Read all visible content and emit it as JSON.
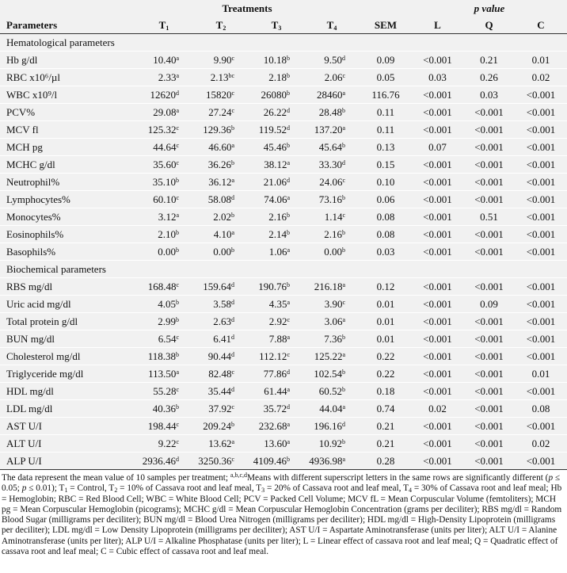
{
  "header": {
    "group_treatments": "Treatments",
    "group_p": "p value",
    "columns": [
      {
        "text": "Parameters"
      },
      {
        "text": "T",
        "sub": "1"
      },
      {
        "text": "T",
        "sub": "2"
      },
      {
        "text": "T",
        "sub": "3"
      },
      {
        "text": "T",
        "sub": "4"
      },
      {
        "text": "SEM"
      },
      {
        "text": "L"
      },
      {
        "text": "Q"
      },
      {
        "text": "C"
      }
    ]
  },
  "sections": [
    {
      "title": "Hematological parameters",
      "rows": [
        {
          "label": "Hb g/dl",
          "values": [
            [
              "10.40",
              "a"
            ],
            [
              "9.90",
              "c"
            ],
            [
              "10.18",
              "b"
            ],
            [
              "9.50",
              "d"
            ]
          ],
          "sem": "0.09",
          "p": [
            "<0.001",
            "0.21",
            "0.01"
          ]
        },
        {
          "label": "RBC x10⁶/µl",
          "values": [
            [
              "2.33",
              "a"
            ],
            [
              "2.13",
              "bc"
            ],
            [
              "2.18",
              "b"
            ],
            [
              "2.06",
              "c"
            ]
          ],
          "sem": "0.05",
          "p": [
            "0.03",
            "0.26",
            "0.02"
          ]
        },
        {
          "label": "WBC x10⁹/l",
          "values": [
            [
              "12620",
              "d"
            ],
            [
              "15820",
              "c"
            ],
            [
              "26080",
              "b"
            ],
            [
              "28460",
              "a"
            ]
          ],
          "sem": "116.76",
          "p": [
            "<0.001",
            "0.03",
            "<0.001"
          ]
        },
        {
          "label": "PCV%",
          "values": [
            [
              "29.08",
              "a"
            ],
            [
              "27.24",
              "c"
            ],
            [
              "26.22",
              "d"
            ],
            [
              "28.48",
              "b"
            ]
          ],
          "sem": "0.11",
          "p": [
            "<0.001",
            "<0.001",
            "<0.001"
          ]
        },
        {
          "label": "MCV fl",
          "values": [
            [
              "125.32",
              "c"
            ],
            [
              "129.36",
              "b"
            ],
            [
              "119.52",
              "d"
            ],
            [
              "137.20",
              "a"
            ]
          ],
          "sem": "0.11",
          "p": [
            "<0.001",
            "<0.001",
            "<0.001"
          ]
        },
        {
          "label": "MCH pg",
          "values": [
            [
              "44.64",
              "c"
            ],
            [
              "46.60",
              "a"
            ],
            [
              "45.46",
              "b"
            ],
            [
              "45.64",
              "b"
            ]
          ],
          "sem": "0.13",
          "p": [
            "0.07",
            "<0.001",
            "<0.001"
          ]
        },
        {
          "label": "MCHC g/dl",
          "values": [
            [
              "35.60",
              "c"
            ],
            [
              "36.26",
              "b"
            ],
            [
              "38.12",
              "a"
            ],
            [
              "33.30",
              "d"
            ]
          ],
          "sem": "0.15",
          "p": [
            "<0.001",
            "<0.001",
            "<0.001"
          ]
        },
        {
          "label": "Neutrophil%",
          "values": [
            [
              "35.10",
              "b"
            ],
            [
              "36.12",
              "a"
            ],
            [
              "21.06",
              "d"
            ],
            [
              "24.06",
              "c"
            ]
          ],
          "sem": "0.10",
          "p": [
            "<0.001",
            "<0.001",
            "<0.001"
          ]
        },
        {
          "label": "Lymphocytes%",
          "values": [
            [
              "60.10",
              "c"
            ],
            [
              "58.08",
              "d"
            ],
            [
              "74.06",
              "a"
            ],
            [
              "73.16",
              "b"
            ]
          ],
          "sem": "0.06",
          "p": [
            "<0.001",
            "<0.001",
            "<0.001"
          ]
        },
        {
          "label": "Monocytes%",
          "values": [
            [
              "3.12",
              "a"
            ],
            [
              "2.02",
              "b"
            ],
            [
              "2.16",
              "b"
            ],
            [
              "1.14",
              "c"
            ]
          ],
          "sem": "0.08",
          "p": [
            "<0.001",
            "0.51",
            "<0.001"
          ]
        },
        {
          "label": "Eosinophils%",
          "values": [
            [
              "2.10",
              "b"
            ],
            [
              "4.10",
              "a"
            ],
            [
              "2.14",
              "b"
            ],
            [
              "2.16",
              "b"
            ]
          ],
          "sem": "0.08",
          "p": [
            "<0.001",
            "<0.001",
            "<0.001"
          ]
        },
        {
          "label": "Basophils%",
          "values": [
            [
              "0.00",
              "b"
            ],
            [
              "0.00",
              "b"
            ],
            [
              "1.06",
              "a"
            ],
            [
              "0.00",
              "b"
            ]
          ],
          "sem": "0.03",
          "p": [
            "<0.001",
            "<0.001",
            "<0.001"
          ]
        }
      ]
    },
    {
      "title": "Biochemical parameters",
      "rows": [
        {
          "label": "RBS mg/dl",
          "values": [
            [
              "168.48",
              "c"
            ],
            [
              "159.64",
              "d"
            ],
            [
              "190.76",
              "b"
            ],
            [
              "216.18",
              "a"
            ]
          ],
          "sem": "0.12",
          "p": [
            "<0.001",
            "<0.001",
            "<0.001"
          ]
        },
        {
          "label": "Uric acid mg/dl",
          "values": [
            [
              "4.05",
              "b"
            ],
            [
              "3.58",
              "d"
            ],
            [
              "4.35",
              "a"
            ],
            [
              "3.90",
              "c"
            ]
          ],
          "sem": "0.01",
          "p": [
            "<0.001",
            "0.09",
            "<0.001"
          ]
        },
        {
          "label": "Total protein g/dl",
          "values": [
            [
              "2.99",
              "b"
            ],
            [
              "2.63",
              "d"
            ],
            [
              "2.92",
              "c"
            ],
            [
              "3.06",
              "a"
            ]
          ],
          "sem": "0.01",
          "p": [
            "<0.001",
            "<0.001",
            "<0.001"
          ]
        },
        {
          "label": "BUN mg/dl",
          "values": [
            [
              "6.54",
              "c"
            ],
            [
              "6.41",
              "d"
            ],
            [
              "7.88",
              "a"
            ],
            [
              "7.36",
              "b"
            ]
          ],
          "sem": "0.01",
          "p": [
            "<0.001",
            "<0.001",
            "<0.001"
          ]
        },
        {
          "label": "Cholesterol mg/dl",
          "values": [
            [
              "118.38",
              "b"
            ],
            [
              "90.44",
              "d"
            ],
            [
              "112.12",
              "c"
            ],
            [
              "125.22",
              "a"
            ]
          ],
          "sem": "0.22",
          "p": [
            "<0.001",
            "<0.001",
            "<0.001"
          ]
        },
        {
          "label": "Triglyceride mg/dl",
          "values": [
            [
              "113.50",
              "a"
            ],
            [
              "82.48",
              "c"
            ],
            [
              "77.86",
              "d"
            ],
            [
              "102.54",
              "b"
            ]
          ],
          "sem": "0.22",
          "p": [
            "<0.001",
            "<0.001",
            "0.01"
          ]
        },
        {
          "label": "HDL mg/dl",
          "values": [
            [
              "55.28",
              "c"
            ],
            [
              "35.44",
              "d"
            ],
            [
              "61.44",
              "a"
            ],
            [
              "60.52",
              "b"
            ]
          ],
          "sem": "0.18",
          "p": [
            "<0.001",
            "<0.001",
            "<0.001"
          ]
        },
        {
          "label": "LDL mg/dl",
          "values": [
            [
              "40.36",
              "b"
            ],
            [
              "37.92",
              "c"
            ],
            [
              "35.72",
              "d"
            ],
            [
              "44.04",
              "a"
            ]
          ],
          "sem": "0.74",
          "p": [
            "0.02",
            "<0.001",
            "0.08"
          ]
        },
        {
          "label": "AST U/I",
          "values": [
            [
              "198.44",
              "c"
            ],
            [
              "209.24",
              "b"
            ],
            [
              "232.68",
              "a"
            ],
            [
              "196.16",
              "d"
            ]
          ],
          "sem": "0.21",
          "p": [
            "<0.001",
            "<0.001",
            "<0.001"
          ]
        },
        {
          "label": "ALT U/I",
          "values": [
            [
              "9.22",
              "c"
            ],
            [
              "13.62",
              "a"
            ],
            [
              "13.60",
              "a"
            ],
            [
              "10.92",
              "b"
            ]
          ],
          "sem": "0.21",
          "p": [
            "<0.001",
            "<0.001",
            "0.02"
          ]
        },
        {
          "label": "ALP U/I",
          "values": [
            [
              "2936.46",
              "d"
            ],
            [
              "3250.36",
              "c"
            ],
            [
              "4109.46",
              "b"
            ],
            [
              "4936.98",
              "a"
            ]
          ],
          "sem": "0.28",
          "p": [
            "<0.001",
            "<0.001",
            "<0.001"
          ]
        }
      ]
    }
  ],
  "footnote": [
    {
      "text": "The data represent the mean value of 10 samples per treatment; "
    },
    {
      "text": "a,b,c,d",
      "style": "sup"
    },
    {
      "text": "Means with different superscript letters in the same rows are significantly different ("
    },
    {
      "text": "p",
      "style": "i"
    },
    {
      "text": " ≤ 0.05; "
    },
    {
      "text": "p",
      "style": "i"
    },
    {
      "text": " ≤ 0.01); T"
    },
    {
      "text": "1",
      "style": "sub"
    },
    {
      "text": " = Control, T"
    },
    {
      "text": "2",
      "style": "sub"
    },
    {
      "text": " = 10% of Cassava root and leaf meal, T"
    },
    {
      "text": "3",
      "style": "sub"
    },
    {
      "text": " = 20% of Cassava root and leaf meal, T"
    },
    {
      "text": "4",
      "style": "sub"
    },
    {
      "text": " = 30% of Cassava root and leaf meal; Hb = Hemoglobin; RBC = Red Blood Cell; WBC = White Blood Cell; PCV = Packed Cell Volume; MCV fL = Mean Corpuscular Volume (femtoliters); MCH pg = Mean Corpuscular Hemoglobin (picograms); MCHC g/dl = Mean Corpuscular Hemoglobin Concentration (grams per deciliter); RBS mg/dl = Random Blood Sugar (milligrams per deciliter); BUN mg/dl = Blood Urea Nitrogen (milligrams per deciliter); HDL mg/dl = High-Density Lipoprotein (milligrams per deciliter); LDL mg/dl = Low Density Lipoprotein (milligrams per deciliter); AST U/I = Aspartate Aminotransferase (units per liter); ALT U/I = Alanine Aminotransferase (units per liter); ALP U/I = Alkaline Phosphatase (units per liter); L = Linear effect of cassava root and leaf meal; Q = Quadratic effect of cassava root and leaf meal; C = Cubic effect of cassava root and leaf meal."
    }
  ]
}
